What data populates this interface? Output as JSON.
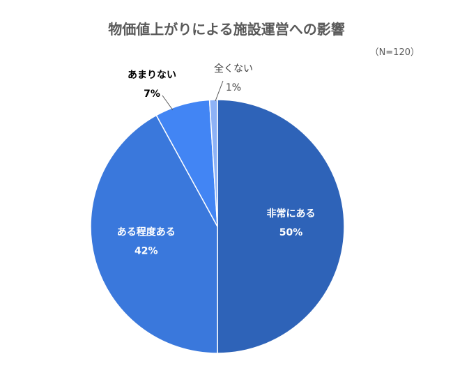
{
  "chart_data": {
    "type": "pie",
    "title": "物価値上がりによる施設運営への影響",
    "note": "（N=120）",
    "slices": [
      {
        "label": "非常にある",
        "value": 50,
        "value_label": "50%",
        "color": "#2E63B8"
      },
      {
        "label": "ある程度ある",
        "value": 42,
        "value_label": "42%",
        "color": "#3A78DC"
      },
      {
        "label": "あまりない",
        "value": 7,
        "value_label": "7%",
        "color": "#4285F4"
      },
      {
        "label": "全くない",
        "value": 1,
        "value_label": "1%",
        "color": "#8DB2F6"
      }
    ],
    "start": "top",
    "direction": "clockwise",
    "legend": "none"
  }
}
